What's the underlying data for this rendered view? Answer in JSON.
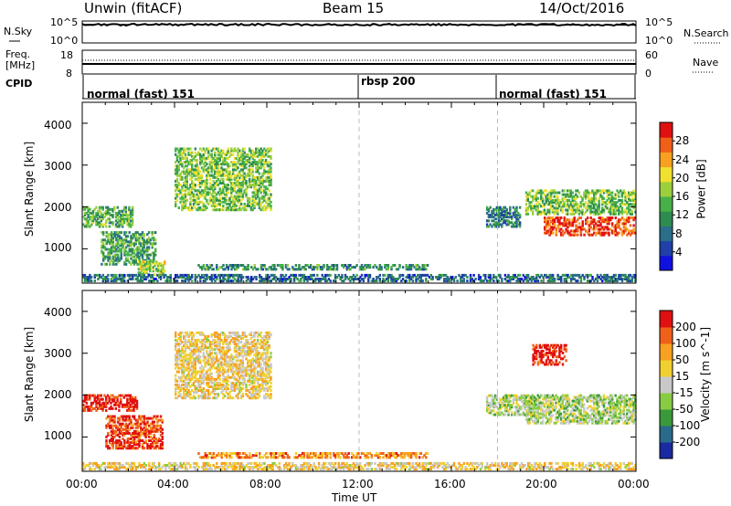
{
  "header": {
    "site": "Unwin (fitACF)",
    "beam": "Beam 15",
    "date": "14/Oct/2016"
  },
  "top_panels": {
    "nsky_label": "N.Sky",
    "nsearch_label": "N.Search",
    "noise_ticks_left": [
      "10^5",
      "10^0"
    ],
    "noise_ticks_right": [
      "10^5",
      "10^0"
    ],
    "freq_label_line1": "Freq.",
    "freq_label_line2": "[MHz]",
    "freq_ticks": [
      "18",
      "8"
    ],
    "nave_label": "Nave",
    "nave_ticks": [
      "60",
      "0"
    ],
    "cpid_label": "CPID",
    "cpid_segments": [
      {
        "label": "normal (fast) 151",
        "start_hour": 0
      },
      {
        "label": "rbsp 200",
        "start_hour": 12
      },
      {
        "label": "normal (fast) 151",
        "start_hour": 18
      }
    ]
  },
  "chart_data": [
    {
      "type": "heatmap",
      "quantity": "Power",
      "ylabel": "Slant Range [km]",
      "ylim": [
        180,
        4500
      ],
      "yticks": [
        "1000",
        "2000",
        "3000",
        "4000"
      ],
      "xlim_hours": [
        0,
        24
      ],
      "colorbar_label": "Power [dB]",
      "colorbar_ticks": [
        "28",
        "24",
        "20",
        "16",
        "12",
        "8",
        "4"
      ],
      "colorbar_colors": [
        "#1010e0",
        "#2040a8",
        "#2a6e8a",
        "#2e8c50",
        "#48b048",
        "#9ccf3c",
        "#f0e030",
        "#f8a020",
        "#f06018",
        "#e01010"
      ],
      "regions": [
        {
          "t0": 0.0,
          "t1": 2.2,
          "r0": 1500,
          "r1": 2000,
          "level": 0.45
        },
        {
          "t0": 0.8,
          "t1": 3.2,
          "r0": 600,
          "r1": 1400,
          "level": 0.4
        },
        {
          "t0": 2.4,
          "t1": 3.6,
          "r0": 350,
          "r1": 700,
          "level": 0.55
        },
        {
          "t0": 4.0,
          "t1": 8.2,
          "r0": 1900,
          "r1": 3400,
          "level": 0.5
        },
        {
          "t0": 5.0,
          "t1": 15.0,
          "r0": 480,
          "r1": 620,
          "level": 0.35
        },
        {
          "t0": 17.5,
          "t1": 19.0,
          "r0": 1500,
          "r1": 2000,
          "level": 0.3
        },
        {
          "t0": 19.2,
          "t1": 24.0,
          "r0": 1800,
          "r1": 2400,
          "level": 0.5
        },
        {
          "t0": 20.0,
          "t1": 24.0,
          "r0": 1300,
          "r1": 1750,
          "level": 0.9
        },
        {
          "t0": 0.0,
          "t1": 24.0,
          "r0": 200,
          "r1": 380,
          "level": 0.25
        }
      ]
    },
    {
      "type": "heatmap",
      "quantity": "Velocity",
      "ylabel": "Slant Range [km]",
      "ylim": [
        180,
        4500
      ],
      "yticks": [
        "1000",
        "2000",
        "3000",
        "4000"
      ],
      "xlim_hours": [
        0,
        24
      ],
      "xticks": [
        "00:00",
        "04:00",
        "08:00",
        "12:00",
        "16:00",
        "20:00",
        "00:00"
      ],
      "xlabel": "Time UT",
      "colorbar_label": "Velocity [m s^-1]",
      "colorbar_ticks": [
        "200",
        "100",
        "50",
        "15",
        "-15",
        "-50",
        "-100",
        "-200"
      ],
      "colorbar_colors": [
        "#1a2aa0",
        "#2a6a8a",
        "#3a9a3a",
        "#88cc44",
        "#c8c8c8",
        "#f0d030",
        "#f8a020",
        "#f06018",
        "#e01010"
      ],
      "regions": [
        {
          "t0": 0.0,
          "t1": 2.4,
          "r0": 1600,
          "r1": 2000,
          "level": 0.95
        },
        {
          "t0": 1.0,
          "t1": 3.5,
          "r0": 700,
          "r1": 1500,
          "level": 0.9
        },
        {
          "t0": 4.0,
          "t1": 8.2,
          "r0": 1900,
          "r1": 3500,
          "level": 0.6
        },
        {
          "t0": 5.0,
          "t1": 15.0,
          "r0": 480,
          "r1": 620,
          "level": 0.75
        },
        {
          "t0": 17.5,
          "t1": 19.5,
          "r0": 1500,
          "r1": 2000,
          "level": 0.45
        },
        {
          "t0": 19.2,
          "t1": 24.0,
          "r0": 1300,
          "r1": 2000,
          "level": 0.45
        },
        {
          "t0": 19.5,
          "t1": 21.0,
          "r0": 2700,
          "r1": 3200,
          "level": 0.95
        },
        {
          "t0": 0.0,
          "t1": 24.0,
          "r0": 200,
          "r1": 380,
          "level": 0.6
        }
      ]
    }
  ]
}
